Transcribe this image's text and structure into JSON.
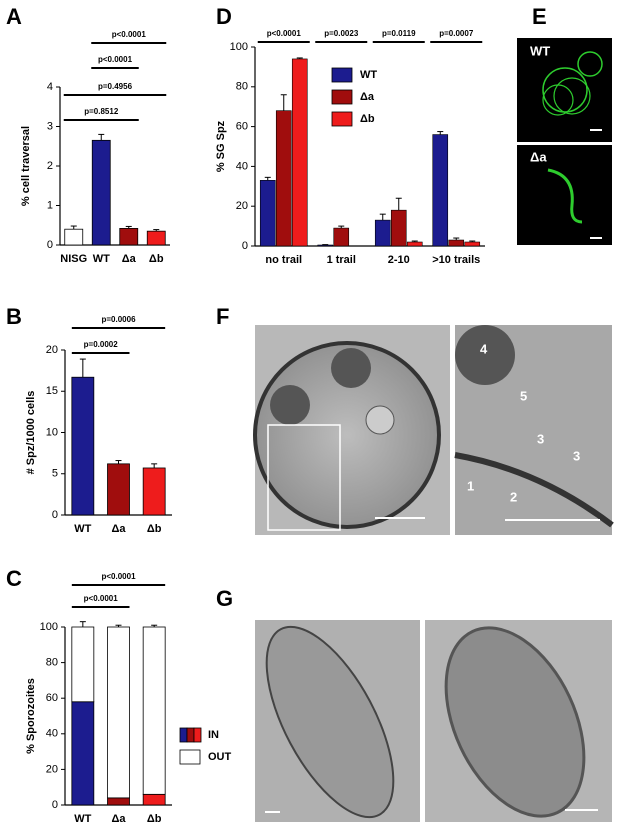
{
  "chart_data": [
    {
      "type": "bar",
      "y_label": "% cell traversal",
      "categories": [
        "NISG",
        "WT",
        "Δa",
        "Δb"
      ],
      "values": [
        0.4,
        2.65,
        0.42,
        0.35
      ],
      "errors": [
        0.08,
        0.15,
        0.05,
        0.04
      ],
      "colors": [
        "#ffffff",
        "#1c1c8f",
        "#a00d0d",
        "#ee1c1c"
      ],
      "ylim": [
        0,
        4
      ],
      "yticks": [
        0,
        1,
        2,
        3,
        4
      ],
      "annotations": [
        "p<0.0001",
        "p<0.0001",
        "p=0.4956",
        "p=0.8512"
      ]
    },
    {
      "type": "bar",
      "y_label": "# Spz/1000 cells",
      "categories": [
        "WT",
        "Δa",
        "Δb"
      ],
      "values": [
        16.7,
        6.2,
        5.7
      ],
      "errors": [
        2.2,
        0.4,
        0.5
      ],
      "colors": [
        "#1c1c8f",
        "#a00d0d",
        "#ee1c1c"
      ],
      "ylim": [
        0,
        20
      ],
      "yticks": [
        0,
        5,
        10,
        15,
        20
      ],
      "annotations": [
        "p=0.0006",
        "p=0.0002"
      ]
    },
    {
      "type": "bar",
      "stacked": true,
      "y_label": "% Sporozoites",
      "categories": [
        "WT",
        "Δa",
        "Δb"
      ],
      "series": [
        {
          "name": "IN",
          "colors": [
            "#1c1c8f",
            "#a00d0d",
            "#ee1c1c"
          ],
          "values": [
            58,
            4,
            6
          ],
          "errors": [
            3,
            1,
            1
          ]
        },
        {
          "name": "OUT",
          "color": "#ffffff",
          "values": [
            42,
            96,
            94
          ],
          "errors": [
            3,
            1,
            1
          ]
        }
      ],
      "ylim": [
        0,
        100
      ],
      "yticks": [
        0,
        20,
        40,
        60,
        80,
        100
      ],
      "annotations": [
        "p<0.0001",
        "p<0.0001"
      ]
    },
    {
      "type": "bar",
      "y_label": "% SG Spz",
      "categories": [
        "no trail",
        "1 trail",
        "2-10",
        ">10 trails"
      ],
      "series": [
        {
          "name": "WT",
          "color": "#1c1c8f",
          "values": [
            33,
            0.5,
            13,
            56
          ],
          "errors": [
            1.5,
            0.2,
            3,
            1.5
          ]
        },
        {
          "name": "Δa",
          "color": "#a00d0d",
          "values": [
            68,
            9,
            18,
            3
          ],
          "errors": [
            8,
            1,
            6,
            1
          ]
        },
        {
          "name": "Δb",
          "color": "#ee1c1c",
          "values": [
            94,
            0,
            2,
            2
          ],
          "errors": [
            0.5,
            0,
            0.5,
            0.5
          ]
        }
      ],
      "ylim": [
        0,
        100
      ],
      "yticks": [
        0,
        20,
        40,
        60,
        80,
        100
      ],
      "annotations": [
        "p<0.0001",
        "p=0.0023",
        "p=0.0119",
        "p=0.0007"
      ]
    }
  ],
  "figure": {
    "panel_letters": [
      "A",
      "B",
      "C",
      "D",
      "E",
      "F",
      "G"
    ],
    "E_labels": [
      "WT",
      "Δa"
    ],
    "F_labels": [
      "4",
      "5",
      "3",
      "3",
      "1",
      "2"
    ]
  }
}
